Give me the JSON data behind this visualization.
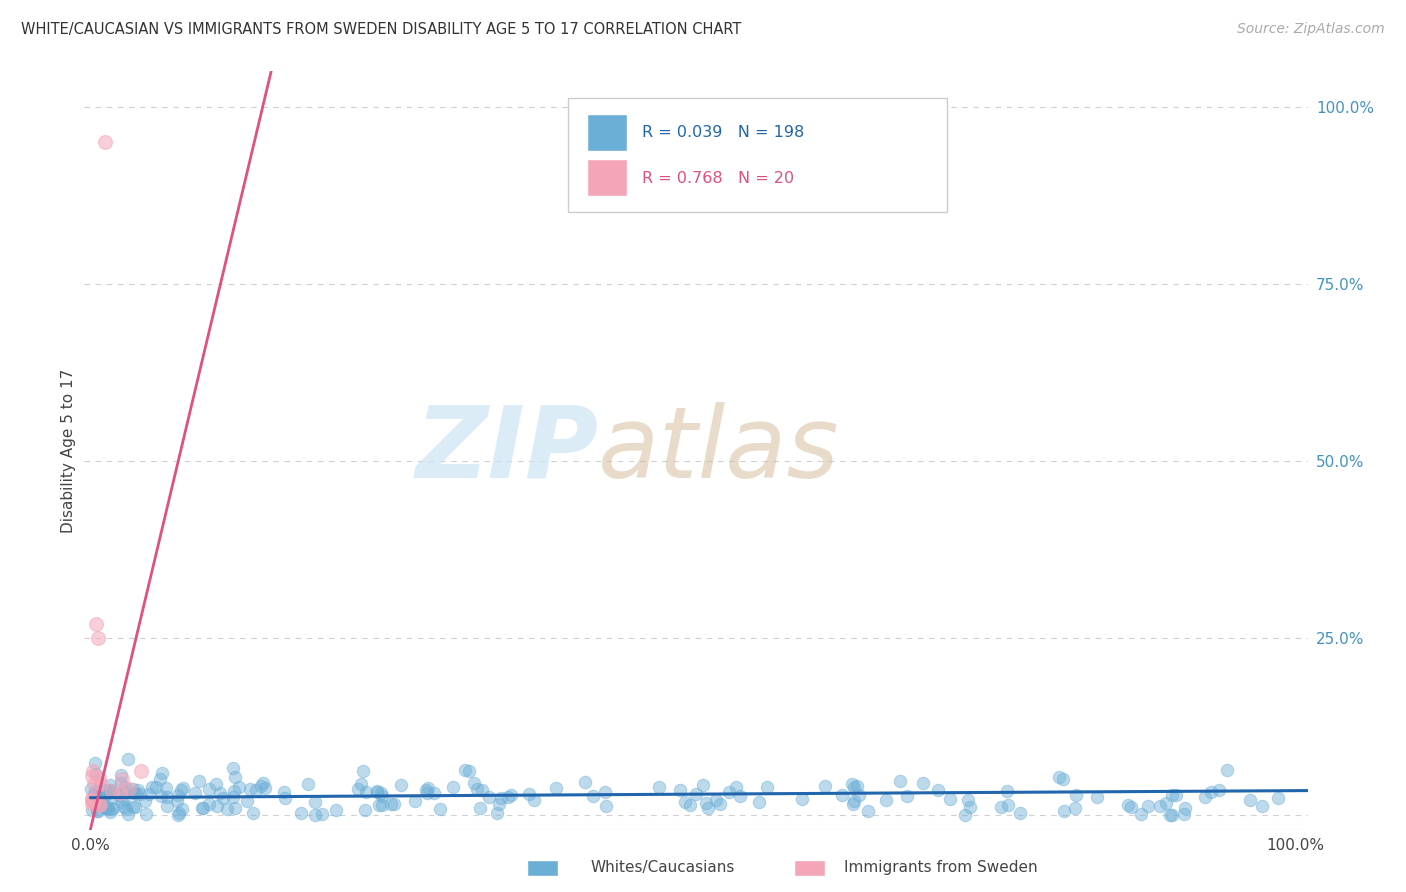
{
  "title": "WHITE/CAUCASIAN VS IMMIGRANTS FROM SWEDEN DISABILITY AGE 5 TO 17 CORRELATION CHART",
  "source": "Source: ZipAtlas.com",
  "ylabel": "Disability Age 5 to 17",
  "legend_blue_r": "0.039",
  "legend_blue_n": "198",
  "legend_pink_r": "0.768",
  "legend_pink_n": "20",
  "legend_blue_label": "Whites/Caucasians",
  "legend_pink_label": "Immigrants from Sweden",
  "blue_color": "#6baed6",
  "pink_color": "#f4a6b8",
  "blue_line_color": "#2166ac",
  "pink_line_color": "#e05080",
  "watermark_zip": "ZIP",
  "watermark_atlas": "atlas",
  "background_color": "#ffffff",
  "grid_color": "#d0d0d0",
  "ytick_vals": [
    0.0,
    0.25,
    0.5,
    0.75,
    1.0
  ],
  "ytick_labels": [
    "",
    "25.0%",
    "50.0%",
    "75.0%",
    "100.0%"
  ],
  "xlim": [
    -0.005,
    1.01
  ],
  "ylim": [
    -0.02,
    1.05
  ]
}
